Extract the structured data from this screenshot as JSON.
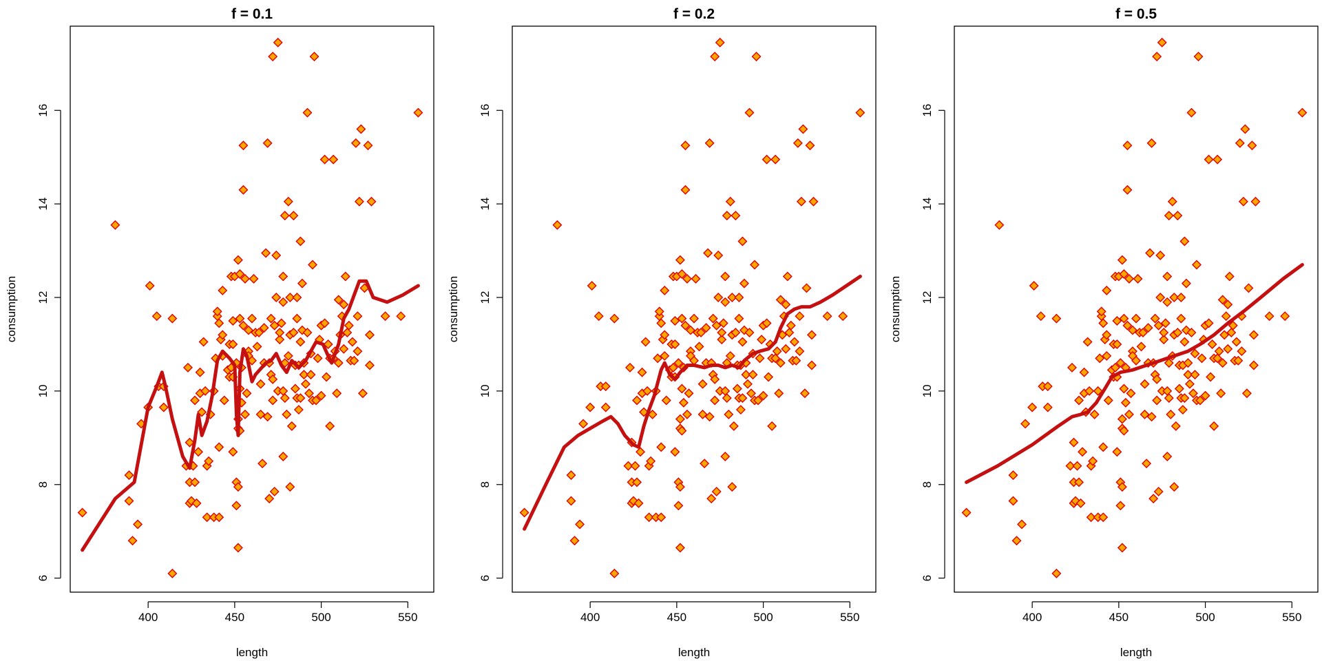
{
  "chart_data": [
    {
      "type": "scatter",
      "title": "f = 0.1",
      "xlabel": "length",
      "ylabel": "consumption",
      "xlim": [
        355,
        565
      ],
      "ylim": [
        5.7,
        17.8
      ],
      "xticks": [
        400,
        450,
        500,
        550
      ],
      "yticks": [
        6,
        8,
        10,
        12,
        14,
        16
      ],
      "grid": false,
      "legend": "none",
      "points": [
        [
          362,
          7.4
        ],
        [
          381,
          13.55
        ],
        [
          389,
          8.2
        ],
        [
          389,
          7.65
        ],
        [
          391,
          6.8
        ],
        [
          394,
          7.15
        ],
        [
          396,
          9.3
        ],
        [
          400,
          9.65
        ],
        [
          401,
          12.25
        ],
        [
          405,
          11.6
        ],
        [
          406,
          10.1
        ],
        [
          409,
          9.65
        ],
        [
          409,
          10.1
        ],
        [
          414,
          11.55
        ],
        [
          414,
          6.1
        ],
        [
          422,
          8.4
        ],
        [
          423,
          10.5
        ],
        [
          424,
          8.9
        ],
        [
          424,
          7.6
        ],
        [
          424,
          8.05
        ],
        [
          425,
          7.65
        ],
        [
          426,
          8.4
        ],
        [
          427,
          9.8
        ],
        [
          427,
          8.05
        ],
        [
          428,
          7.6
        ],
        [
          429,
          8.7
        ],
        [
          430,
          9.95
        ],
        [
          430,
          10.4
        ],
        [
          431,
          9.55
        ],
        [
          432,
          11.05
        ],
        [
          433,
          10.0
        ],
        [
          434,
          8.4
        ],
        [
          434,
          7.3
        ],
        [
          435,
          8.5
        ],
        [
          436,
          9.5
        ],
        [
          438,
          7.3
        ],
        [
          438,
          10.0
        ],
        [
          439,
          10.7
        ],
        [
          440,
          11.6
        ],
        [
          440,
          11.7
        ],
        [
          441,
          7.3
        ],
        [
          441,
          11.45
        ],
        [
          441,
          8.8
        ],
        [
          442,
          11.1
        ],
        [
          443,
          11.2
        ],
        [
          443,
          10.75
        ],
        [
          443,
          12.15
        ],
        [
          444,
          9.8
        ],
        [
          446,
          10.45
        ],
        [
          447,
          11.0
        ],
        [
          447,
          10.3
        ],
        [
          448,
          10.5
        ],
        [
          448,
          12.45
        ],
        [
          449,
          11.5
        ],
        [
          449,
          11.0
        ],
        [
          449,
          8.7
        ],
        [
          449,
          10.3
        ],
        [
          450,
          12.45
        ],
        [
          451,
          10.6
        ],
        [
          451,
          8.05
        ],
        [
          451,
          7.55
        ],
        [
          452,
          7.95
        ],
        [
          452,
          6.65
        ],
        [
          452,
          9.2
        ],
        [
          452,
          9.4
        ],
        [
          452,
          12.8
        ],
        [
          453,
          12.5
        ],
        [
          453,
          9.15
        ],
        [
          453,
          10.05
        ],
        [
          453,
          11.55
        ],
        [
          454,
          10.5
        ],
        [
          454,
          9.75
        ],
        [
          455,
          15.25
        ],
        [
          455,
          14.3
        ],
        [
          455,
          11.4
        ],
        [
          456,
          12.4
        ],
        [
          456,
          9.5
        ],
        [
          457,
          9.95
        ],
        [
          458,
          10.85
        ],
        [
          458,
          10.75
        ],
        [
          458,
          11.3
        ],
        [
          460,
          11.55
        ],
        [
          460,
          10.65
        ],
        [
          461,
          12.4
        ],
        [
          462,
          11.25
        ],
        [
          463,
          10.95
        ],
        [
          464,
          11.25
        ],
        [
          465,
          9.5
        ],
        [
          465,
          10.15
        ],
        [
          466,
          8.45
        ],
        [
          467,
          10.6
        ],
        [
          467,
          11.35
        ],
        [
          468,
          12.95
        ],
        [
          469,
          9.45
        ],
        [
          469,
          15.3
        ],
        [
          470,
          7.7
        ],
        [
          470,
          10.6
        ],
        [
          471,
          10.35
        ],
        [
          471,
          11.55
        ],
        [
          472,
          17.15
        ],
        [
          472,
          9.8
        ],
        [
          472,
          10.25
        ],
        [
          473,
          7.85
        ],
        [
          473,
          11.4
        ],
        [
          474,
          12.9
        ],
        [
          474,
          12.0
        ],
        [
          475,
          17.45
        ],
        [
          475,
          10.0
        ],
        [
          476,
          11.1
        ],
        [
          476,
          11.25
        ],
        [
          477,
          11.45
        ],
        [
          478,
          8.6
        ],
        [
          478,
          10.0
        ],
        [
          478,
          11.9
        ],
        [
          478,
          12.45
        ],
        [
          479,
          13.75
        ],
        [
          479,
          10.6
        ],
        [
          479,
          9.85
        ],
        [
          480,
          9.5
        ],
        [
          481,
          10.75
        ],
        [
          481,
          14.05
        ],
        [
          482,
          12.0
        ],
        [
          482,
          7.95
        ],
        [
          482,
          11.2
        ],
        [
          483,
          9.25
        ],
        [
          484,
          13.75
        ],
        [
          484,
          11.25
        ],
        [
          485,
          10.55
        ],
        [
          485,
          10.05
        ],
        [
          486,
          9.85
        ],
        [
          486,
          11.55
        ],
        [
          486,
          12.0
        ],
        [
          487,
          9.6
        ],
        [
          487,
          10.55
        ],
        [
          488,
          9.85
        ],
        [
          488,
          13.2
        ],
        [
          488,
          11.05
        ],
        [
          489,
          11.3
        ],
        [
          489,
          12.3
        ],
        [
          490,
          10.6
        ],
        [
          490,
          10.35
        ],
        [
          491,
          10.15
        ],
        [
          492,
          15.95
        ],
        [
          492,
          11.25
        ],
        [
          493,
          9.95
        ],
        [
          494,
          10.8
        ],
        [
          494,
          10.35
        ],
        [
          495,
          9.8
        ],
        [
          495,
          12.7
        ],
        [
          496,
          17.15
        ],
        [
          497,
          9.8
        ],
        [
          498,
          10.7
        ],
        [
          499,
          11.1
        ],
        [
          500,
          11.4
        ],
        [
          500,
          9.9
        ],
        [
          502,
          14.95
        ],
        [
          502,
          11.45
        ],
        [
          503,
          10.3
        ],
        [
          504,
          11.0
        ],
        [
          505,
          10.7
        ],
        [
          505,
          9.25
        ],
        [
          507,
          14.95
        ],
        [
          507,
          10.7
        ],
        [
          508,
          10.85
        ],
        [
          509,
          9.95
        ],
        [
          510,
          11.95
        ],
        [
          510,
          10.6
        ],
        [
          511,
          11.2
        ],
        [
          512,
          11.6
        ],
        [
          513,
          10.9
        ],
        [
          513,
          11.85
        ],
        [
          514,
          12.45
        ],
        [
          515,
          11.25
        ],
        [
          516,
          11.4
        ],
        [
          517,
          10.65
        ],
        [
          518,
          11.05
        ],
        [
          519,
          10.65
        ],
        [
          520,
          15.3
        ],
        [
          521,
          11.6
        ],
        [
          521,
          10.85
        ],
        [
          522,
          14.05
        ],
        [
          523,
          15.6
        ],
        [
          524,
          9.95
        ],
        [
          525,
          12.2
        ],
        [
          527,
          15.25
        ],
        [
          528,
          11.2
        ],
        [
          528,
          10.55
        ],
        [
          529,
          14.05
        ],
        [
          537,
          11.6
        ],
        [
          546,
          11.6
        ],
        [
          556,
          15.95
        ]
      ],
      "lowess": [
        [
          362,
          6.6
        ],
        [
          381,
          7.7
        ],
        [
          392,
          8.05
        ],
        [
          400,
          9.65
        ],
        [
          405,
          10.1
        ],
        [
          408,
          10.4
        ],
        [
          410,
          10.1
        ],
        [
          414,
          9.4
        ],
        [
          420,
          8.6
        ],
        [
          424,
          8.35
        ],
        [
          427,
          8.95
        ],
        [
          429,
          9.5
        ],
        [
          431,
          9.05
        ],
        [
          434,
          9.35
        ],
        [
          437,
          9.9
        ],
        [
          440,
          10.65
        ],
        [
          443,
          10.85
        ],
        [
          447,
          10.7
        ],
        [
          450,
          10.55
        ],
        [
          451,
          9.5
        ],
        [
          452,
          9.05
        ],
        [
          453,
          10.4
        ],
        [
          455,
          10.9
        ],
        [
          457,
          10.75
        ],
        [
          460,
          10.2
        ],
        [
          462,
          10.35
        ],
        [
          468,
          10.6
        ],
        [
          471,
          10.65
        ],
        [
          474,
          10.8
        ],
        [
          477,
          10.55
        ],
        [
          480,
          10.4
        ],
        [
          483,
          10.65
        ],
        [
          487,
          10.5
        ],
        [
          491,
          10.65
        ],
        [
          494,
          10.85
        ],
        [
          497,
          11.05
        ],
        [
          501,
          11.0
        ],
        [
          504,
          10.75
        ],
        [
          506,
          10.6
        ],
        [
          510,
          11.0
        ],
        [
          513,
          11.55
        ],
        [
          516,
          11.75
        ],
        [
          519,
          12.05
        ],
        [
          522,
          12.35
        ],
        [
          526,
          12.35
        ],
        [
          530,
          12.0
        ],
        [
          534,
          11.95
        ],
        [
          538,
          11.9
        ],
        [
          547,
          12.05
        ],
        [
          556,
          12.25
        ]
      ]
    },
    {
      "type": "scatter",
      "title": "f = 0.2",
      "xlabel": "length",
      "ylabel": "consumption",
      "xlim": [
        355,
        565
      ],
      "ylim": [
        5.7,
        17.8
      ],
      "xticks": [
        400,
        450,
        500,
        550
      ],
      "yticks": [
        6,
        8,
        10,
        12,
        14,
        16
      ],
      "grid": false,
      "legend": "none",
      "points_same_as": "panel 1",
      "lowess": [
        [
          362,
          7.05
        ],
        [
          375,
          8.05
        ],
        [
          385,
          8.8
        ],
        [
          393,
          9.05
        ],
        [
          400,
          9.2
        ],
        [
          407,
          9.35
        ],
        [
          412,
          9.45
        ],
        [
          416,
          9.3
        ],
        [
          420,
          9.05
        ],
        [
          425,
          8.85
        ],
        [
          428,
          8.8
        ],
        [
          431,
          9.25
        ],
        [
          434,
          9.6
        ],
        [
          437,
          9.9
        ],
        [
          441,
          10.45
        ],
        [
          443,
          10.6
        ],
        [
          446,
          10.35
        ],
        [
          449,
          10.25
        ],
        [
          452,
          10.4
        ],
        [
          456,
          10.55
        ],
        [
          460,
          10.55
        ],
        [
          466,
          10.5
        ],
        [
          470,
          10.55
        ],
        [
          474,
          10.55
        ],
        [
          478,
          10.5
        ],
        [
          482,
          10.55
        ],
        [
          486,
          10.5
        ],
        [
          489,
          10.65
        ],
        [
          494,
          10.8
        ],
        [
          498,
          10.85
        ],
        [
          503,
          10.9
        ],
        [
          507,
          11.05
        ],
        [
          510,
          11.35
        ],
        [
          514,
          11.65
        ],
        [
          518,
          11.75
        ],
        [
          522,
          11.8
        ],
        [
          527,
          11.8
        ],
        [
          533,
          11.9
        ],
        [
          540,
          12.05
        ],
        [
          548,
          12.25
        ],
        [
          556,
          12.45
        ]
      ]
    },
    {
      "type": "scatter",
      "title": "f = 0.5",
      "xlabel": "length",
      "ylabel": "consumption",
      "xlim": [
        355,
        565
      ],
      "ylim": [
        5.7,
        17.8
      ],
      "xticks": [
        400,
        450,
        500,
        550
      ],
      "yticks": [
        6,
        8,
        10,
        12,
        14,
        16
      ],
      "grid": false,
      "legend": "none",
      "points_same_as": "panel 1",
      "lowess": [
        [
          362,
          8.05
        ],
        [
          380,
          8.4
        ],
        [
          400,
          8.85
        ],
        [
          415,
          9.25
        ],
        [
          423,
          9.45
        ],
        [
          428,
          9.5
        ],
        [
          432,
          9.55
        ],
        [
          437,
          9.75
        ],
        [
          442,
          10.05
        ],
        [
          446,
          10.3
        ],
        [
          451,
          10.4
        ],
        [
          458,
          10.45
        ],
        [
          466,
          10.55
        ],
        [
          474,
          10.65
        ],
        [
          482,
          10.75
        ],
        [
          490,
          10.85
        ],
        [
          497,
          11.0
        ],
        [
          505,
          11.2
        ],
        [
          513,
          11.45
        ],
        [
          522,
          11.7
        ],
        [
          532,
          12.0
        ],
        [
          545,
          12.4
        ],
        [
          556,
          12.7
        ]
      ]
    }
  ],
  "colors": {
    "point_fill": "#ffa500",
    "point_stroke": "#e00000",
    "curve": "#c41010",
    "axis": "#000000"
  }
}
